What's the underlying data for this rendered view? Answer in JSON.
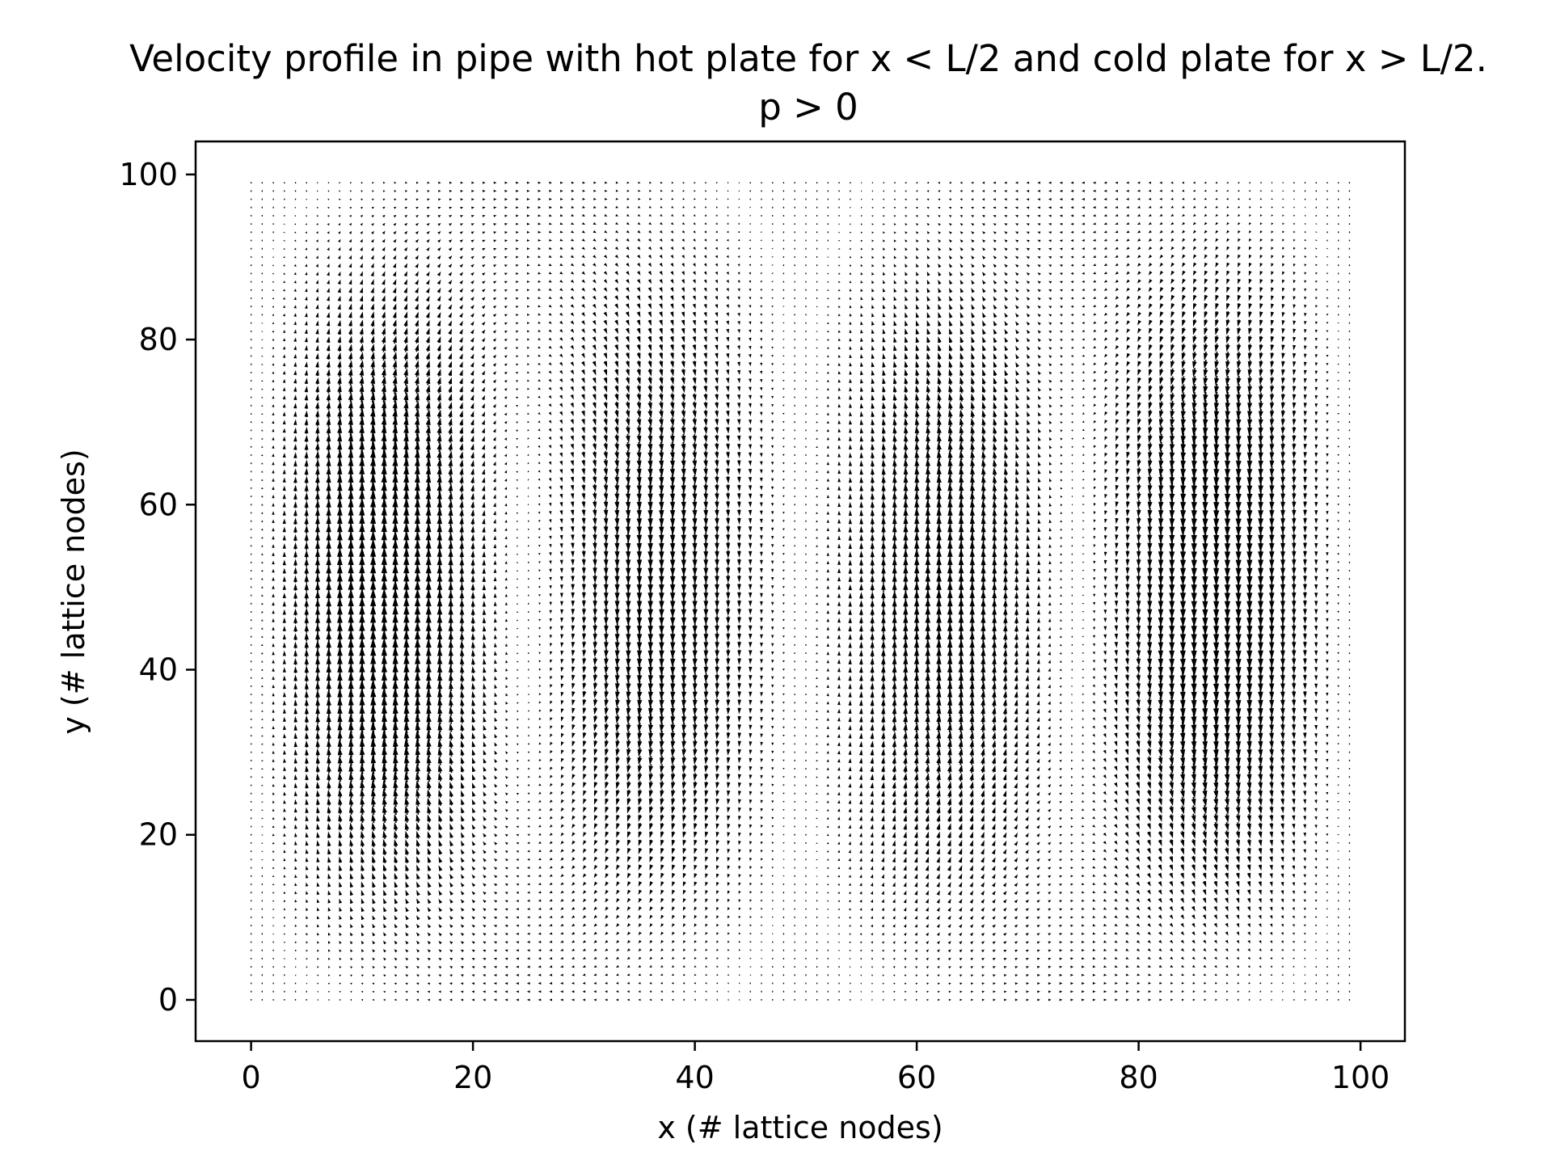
{
  "chart_data": {
    "type": "quiver",
    "title_line1": "Velocity profile in pipe with hot plate for x < L/2 and cold plate for x > L/2.",
    "title_line2": "p > 0",
    "xlabel": "x (# lattice nodes)",
    "ylabel": "y (# lattice nodes)",
    "xlim": [
      -5,
      104
    ],
    "ylim": [
      -5,
      104
    ],
    "xticks": [
      0,
      20,
      40,
      60,
      80,
      100
    ],
    "yticks": [
      0,
      20,
      40,
      60,
      80,
      100
    ],
    "xtick_labels": [
      "0",
      "20",
      "40",
      "60",
      "80",
      "100"
    ],
    "ytick_labels": [
      "0",
      "20",
      "40",
      "60",
      "80",
      "100"
    ],
    "grid": false,
    "grid_nodes": {
      "x_range": [
        0,
        99
      ],
      "y_range": [
        0,
        99
      ]
    },
    "arrow_color": "#000000",
    "flow_description": "two convection rolls: upward flow for x < L/2, downward flow for x > L/2"
  }
}
